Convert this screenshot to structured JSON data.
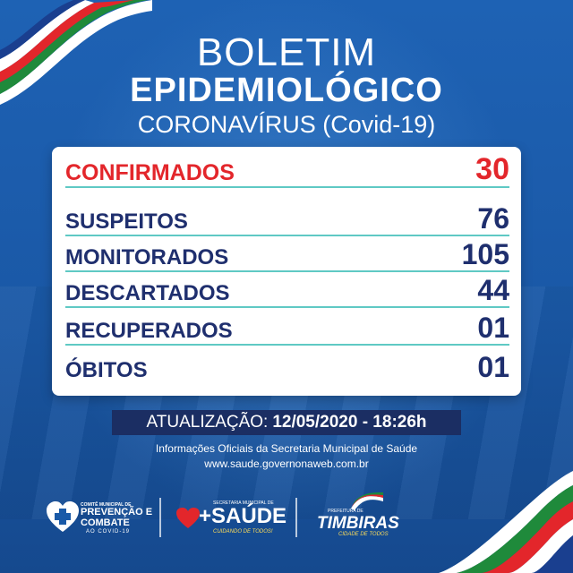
{
  "header": {
    "title_line1": "BOLETIM",
    "title_line2": "EPIDEMIOLÓGICO",
    "subtitle": "CORONAVÍRUS (Covid-19)"
  },
  "stats": [
    {
      "label": "CONFIRMADOS",
      "value": "30"
    },
    {
      "label": "SUSPEITOS",
      "value": "76"
    },
    {
      "label": "MONITORADOS",
      "value": "105"
    },
    {
      "label": "DESCARTADOS",
      "value": "44"
    },
    {
      "label": "RECUPERADOS",
      "value": "01"
    },
    {
      "label": "ÓBITOS",
      "value": "01"
    }
  ],
  "update": {
    "label": "ATUALIZAÇÃO:",
    "value": "12/05/2020 - 18:26h"
  },
  "info": {
    "line1": "Informações Oficiais da Secretaria Municipal de Saúde",
    "line2": "www.saude.governonaweb.com.br"
  },
  "footer": {
    "logo1": {
      "small": "COMITÊ MUNICIPAL DE",
      "line_a": "PREVENÇÃO E",
      "line_b": "COMBATE",
      "line_c": "AO COVID-19"
    },
    "logo2": {
      "small": "SECRETARIA MUNICIPAL DE",
      "main": "+SAÚDE",
      "tagline": "CUIDANDO DE TODOS!"
    },
    "logo3": {
      "small": "PREFEITURA DE",
      "main": "TIMBIRAS",
      "tagline": "CIDADE DE TODOS"
    }
  },
  "colors": {
    "background": "#1a5aa8",
    "confirmed": "#e3262b",
    "label": "#1f2f6e",
    "divider": "#5fc9c4",
    "update_bar": "#1b2e63"
  }
}
